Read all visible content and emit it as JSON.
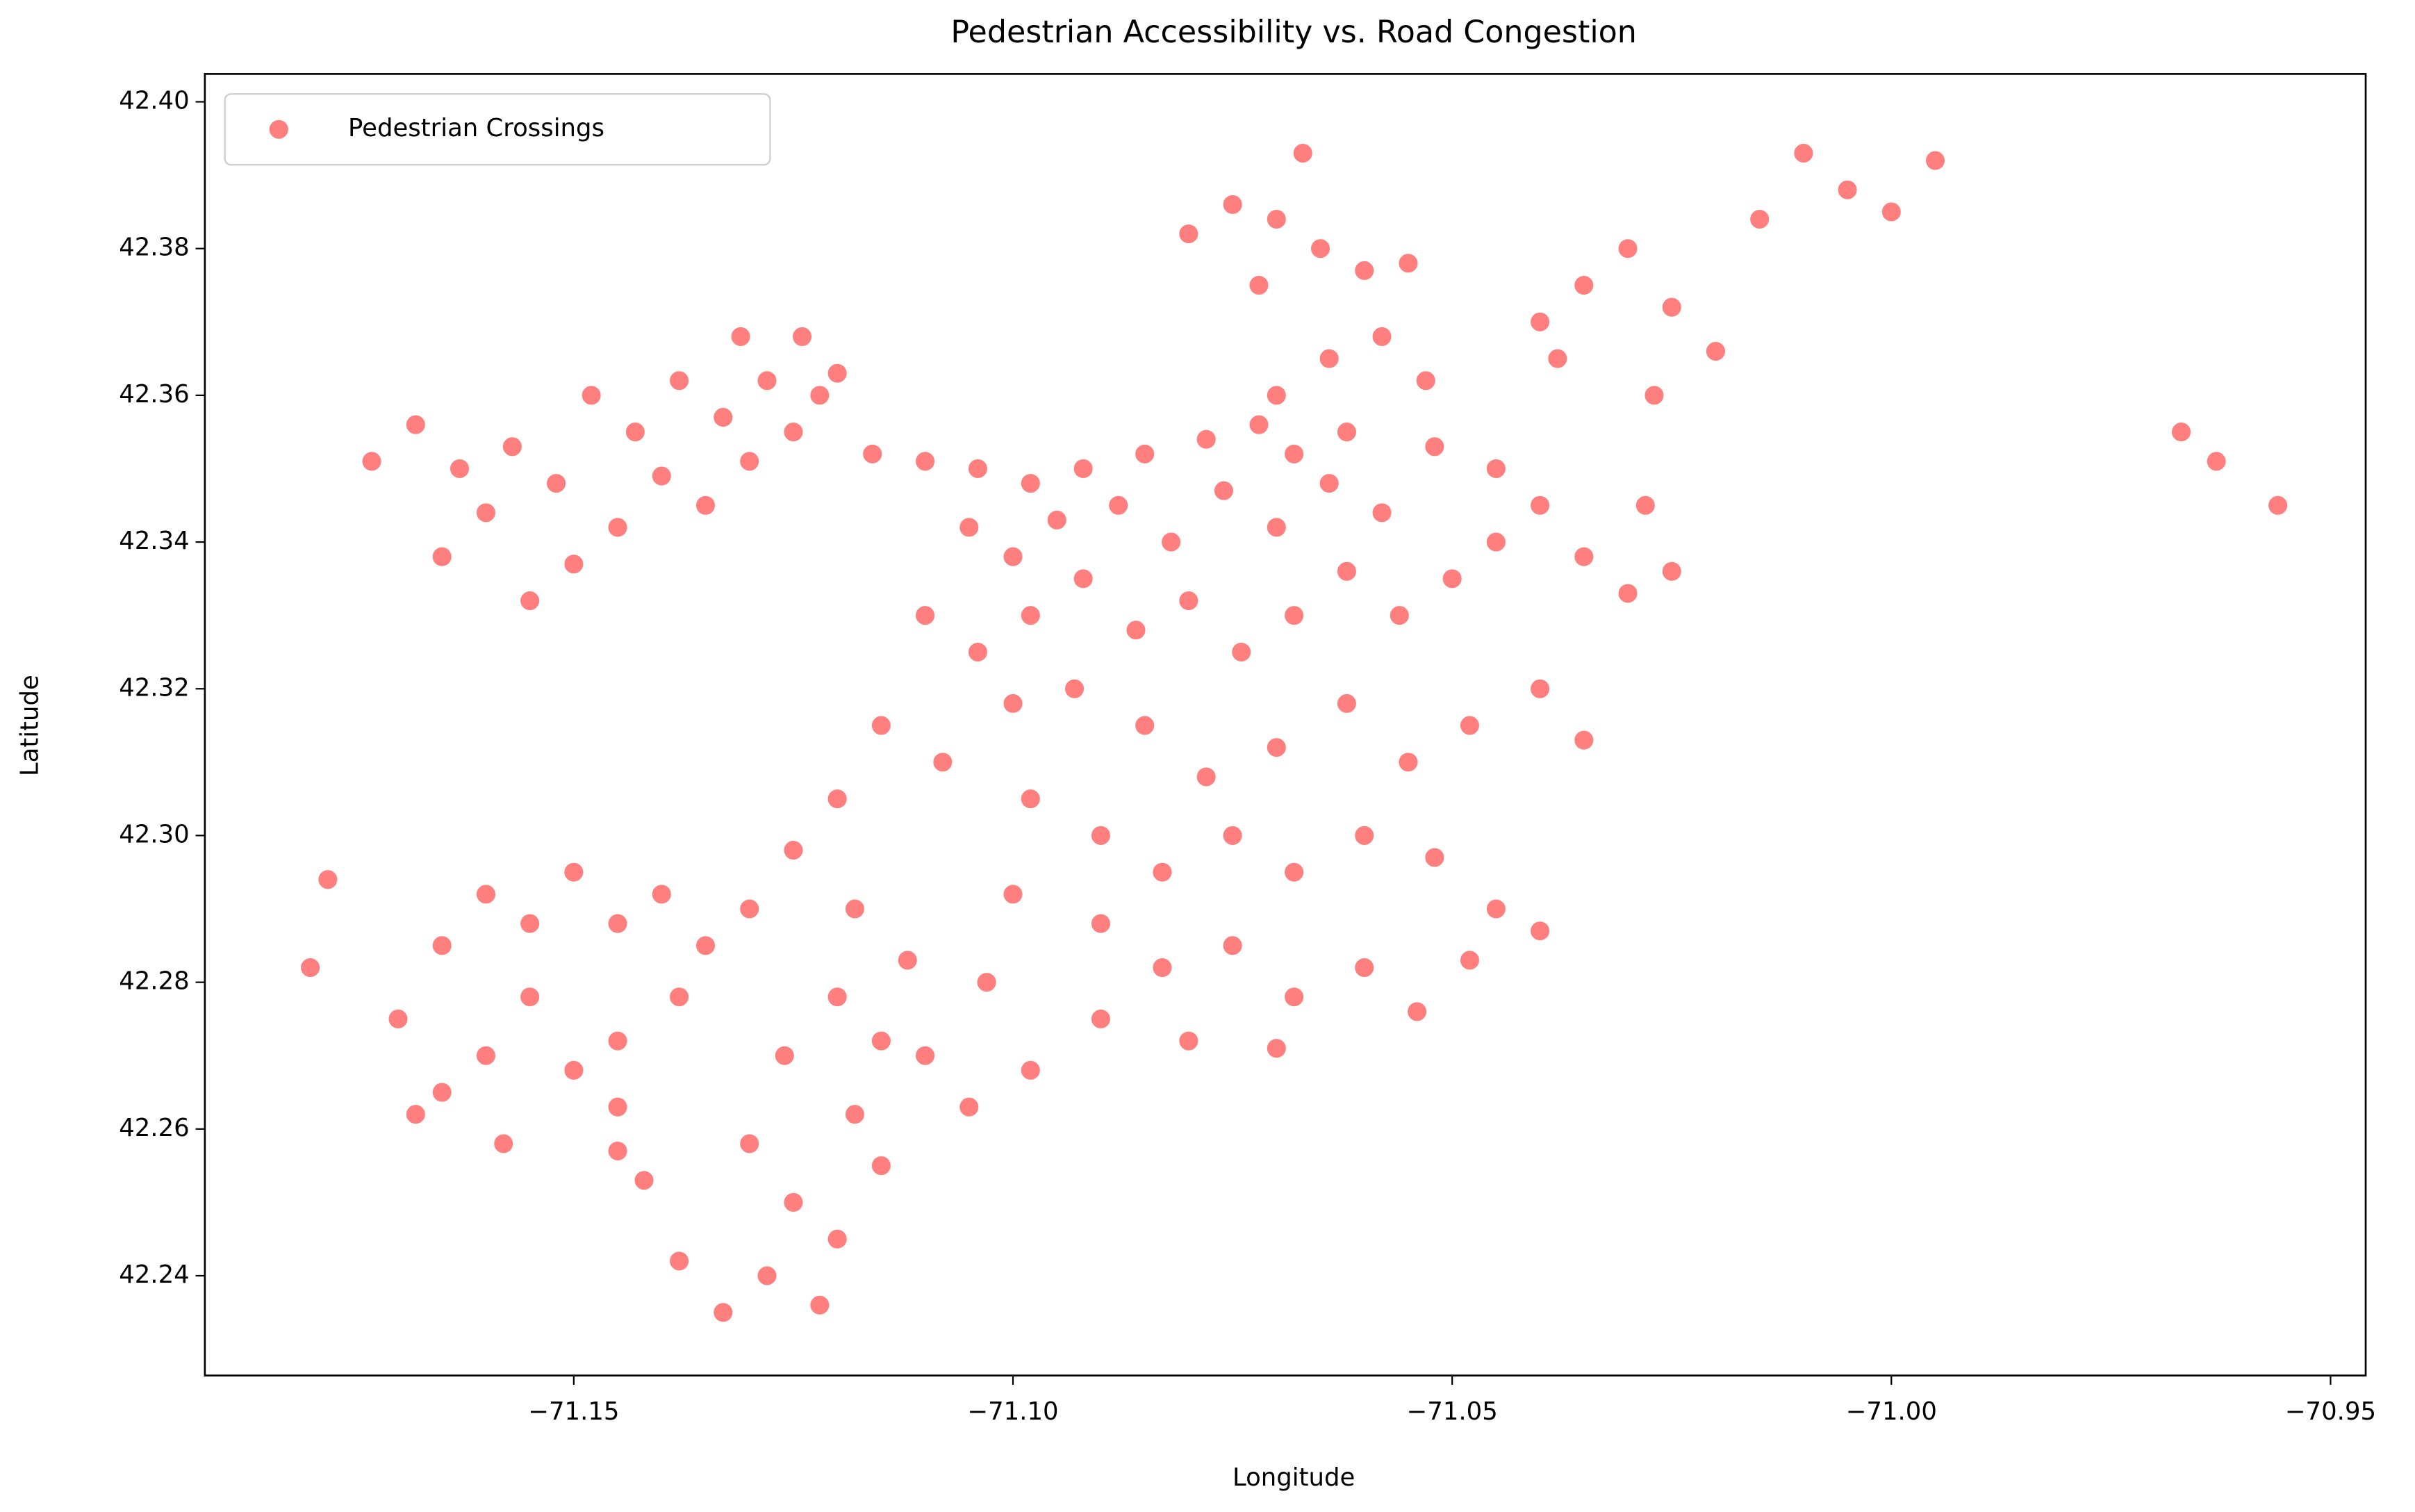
{
  "chart_data": {
    "type": "scatter",
    "title": "Pedestrian Accessibility vs. Road Congestion",
    "x_label": "Longitude",
    "y_label": "Latitude",
    "xlim": [
      -71.192,
      -70.946
    ],
    "ylim": [
      42.2264,
      42.4038
    ],
    "xticks": [
      {
        "value": -71.15,
        "label": "−71.15"
      },
      {
        "value": -71.1,
        "label": "−71.10"
      },
      {
        "value": -71.05,
        "label": "−71.05"
      },
      {
        "value": -71.0,
        "label": "−71.00"
      },
      {
        "value": -70.95,
        "label": "−70.95"
      }
    ],
    "yticks": [
      42.24,
      42.26,
      42.28,
      {
        "value": 42.3,
        "label": "42.30"
      },
      42.32,
      42.34,
      42.36,
      42.38,
      {
        "value": 42.4,
        "label": "42.40"
      }
    ],
    "legend": "upper left",
    "series": [
      {
        "name": "Pedestrian Crossings",
        "color": "#ff0000",
        "x": [
          -71.173,
          -71.168,
          -71.163,
          -71.16,
          -71.165,
          -71.157,
          -71.152,
          -71.148,
          -71.143,
          -71.14,
          -71.145,
          -71.15,
          -71.155,
          -71.138,
          -71.133,
          -71.13,
          -71.135,
          -71.128,
          -71.124,
          -71.122,
          -71.125,
          -71.12,
          -71.131,
          -71.116,
          -71.11,
          -71.104,
          -71.098,
          -71.092,
          -71.085,
          -71.078,
          -71.072,
          -71.105,
          -71.1,
          -71.095,
          -71.088,
          -71.082,
          -71.076,
          -71.07,
          -71.064,
          -71.058,
          -71.11,
          -71.104,
          -71.098,
          -71.092,
          -71.086,
          -71.08,
          -71.074,
          -71.068,
          -71.062,
          -71.056,
          -71.05,
          -71.045,
          -71.04,
          -71.035,
          -71.03,
          -71.025,
          -71.045,
          -71.052,
          -71.028,
          -71.07,
          -71.064,
          -71.058,
          -71.053,
          -71.062,
          -71.068,
          -71.08,
          -71.075,
          -71.07,
          -71.065,
          -71.06,
          -71.055,
          -71.067,
          -71.072,
          -71.04,
          -71.035,
          -71.03,
          -71.025,
          -71.02,
          -71.027,
          -71.015,
          -71.01,
          -71.005,
          -71.0,
          -70.995,
          -71.038,
          -70.967,
          -70.963,
          -70.956,
          -71.115,
          -71.108,
          -71.1,
          -71.093,
          -71.085,
          -71.078,
          -71.07,
          -71.062,
          -71.055,
          -71.048,
          -71.04,
          -71.035,
          -71.098,
          -71.09,
          -71.083,
          -71.075,
          -71.068,
          -71.06,
          -71.052,
          -71.045,
          -71.04,
          -71.09,
          -71.083,
          -71.075,
          -71.068,
          -71.06,
          -71.054,
          -71.048,
          -71.08,
          -71.07,
          -71.09,
          -71.098,
          -71.105,
          -71.11,
          -71.103,
          -71.1,
          -71.12,
          -71.125,
          -71.118,
          -71.112,
          -71.12,
          -71.126,
          -71.118,
          -71.115,
          -71.17,
          -71.165,
          -71.16,
          -71.155,
          -71.15,
          -71.145,
          -71.14,
          -71.135,
          -71.13,
          -71.155,
          -71.16,
          -71.165,
          -71.15,
          -71.145,
          -71.138,
          -71.178,
          -71.18,
          -71.168,
          -71.158,
          -71.13,
          -71.125,
          -71.12,
          -71.128,
          -71.133,
          -71.138,
          -71.142,
          -71.145,
          -71.115,
          -71.122,
          -71.145
        ],
        "values": [
          42.351,
          42.356,
          42.35,
          42.344,
          42.338,
          42.353,
          42.348,
          42.36,
          42.355,
          42.349,
          42.342,
          42.337,
          42.332,
          42.362,
          42.357,
          42.351,
          42.345,
          42.362,
          42.368,
          42.36,
          42.355,
          42.363,
          42.368,
          42.352,
          42.351,
          42.35,
          42.348,
          42.35,
          42.352,
          42.354,
          42.356,
          42.342,
          42.338,
          42.343,
          42.345,
          42.34,
          42.347,
          42.342,
          42.348,
          42.344,
          42.33,
          42.325,
          42.33,
          42.335,
          42.328,
          42.332,
          42.325,
          42.33,
          42.336,
          42.33,
          42.335,
          42.34,
          42.345,
          42.338,
          42.333,
          42.336,
          42.35,
          42.353,
          42.345,
          42.36,
          42.365,
          42.368,
          42.362,
          42.355,
          42.352,
          42.382,
          42.386,
          42.384,
          42.38,
          42.377,
          42.378,
          42.393,
          42.375,
          42.37,
          42.375,
          42.38,
          42.372,
          42.366,
          42.36,
          42.384,
          42.393,
          42.388,
          42.385,
          42.392,
          42.365,
          42.355,
          42.351,
          42.345,
          42.315,
          42.31,
          42.318,
          42.32,
          42.315,
          42.308,
          42.312,
          42.318,
          42.31,
          42.315,
          42.32,
          42.313,
          42.305,
          42.3,
          42.295,
          42.3,
          42.295,
          42.3,
          42.297,
          42.29,
          42.287,
          42.288,
          42.282,
          42.285,
          42.278,
          42.282,
          42.276,
          42.283,
          42.272,
          42.271,
          42.275,
          42.268,
          42.263,
          42.27,
          42.28,
          42.292,
          42.305,
          42.298,
          42.29,
          42.283,
          42.278,
          42.27,
          42.262,
          42.272,
          42.275,
          42.285,
          42.292,
          42.288,
          42.295,
          42.288,
          42.292,
          42.285,
          42.29,
          42.278,
          42.27,
          42.265,
          42.268,
          42.272,
          42.278,
          42.294,
          42.282,
          42.262,
          42.258,
          42.258,
          42.25,
          42.245,
          42.24,
          42.235,
          42.242,
          42.253,
          42.257,
          42.255,
          42.236,
          42.263
        ]
      }
    ]
  }
}
